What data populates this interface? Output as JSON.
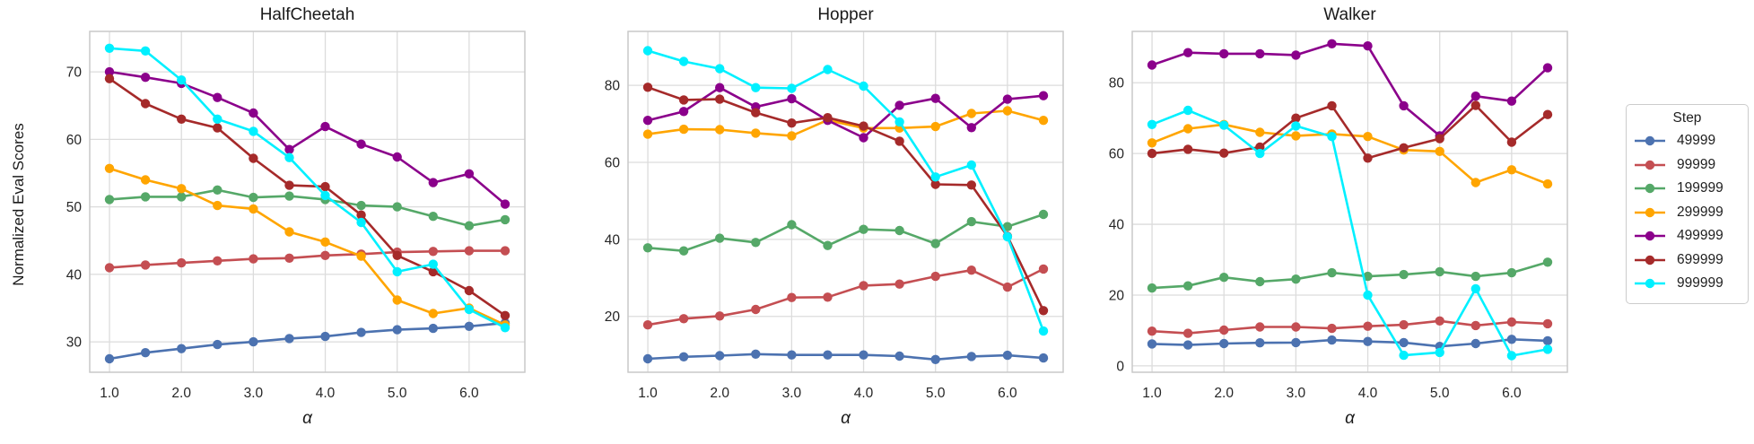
{
  "figure": {
    "ylabel": "Normalized Eval Scores",
    "xlabel": "α",
    "background": "#ffffff",
    "grid_color": "#dcdcdc",
    "spine_color": "#c9c9c9"
  },
  "legend": {
    "title": "Step",
    "position": "right",
    "entries": [
      {
        "label": "49999",
        "color": "#4C72B0"
      },
      {
        "label": "99999",
        "color": "#C44E52"
      },
      {
        "label": "199999",
        "color": "#55A868"
      },
      {
        "label": "299999",
        "color": "#FFA500"
      },
      {
        "label": "499999",
        "color": "#8B008B"
      },
      {
        "label": "699999",
        "color": "#A52A2A"
      },
      {
        "label": "999999",
        "color": "#00F0FF"
      }
    ]
  },
  "chart_data": [
    {
      "type": "line",
      "title": "HalfCheetah",
      "xlabel": "α",
      "ylabel": "Normalized Eval Scores",
      "grid": true,
      "x": [
        1.0,
        1.5,
        2.0,
        2.5,
        3.0,
        3.5,
        4.0,
        4.5,
        5.0,
        5.5,
        6.0,
        6.5
      ],
      "xlim": [
        0.725,
        6.775
      ],
      "ylim": [
        25.5,
        76.0
      ],
      "xticks": [
        1.0,
        2.0,
        3.0,
        4.0,
        5.0,
        6.0
      ],
      "xtick_labels": [
        "1.0",
        "2.0",
        "3.0",
        "4.0",
        "5.0",
        "6.0"
      ],
      "yticks": [
        30,
        40,
        50,
        60,
        70
      ],
      "ytick_labels": [
        "30",
        "40",
        "50",
        "60",
        "70"
      ],
      "series": [
        {
          "name": "49999",
          "color": "#4C72B0",
          "values": [
            27.5,
            28.4,
            29.0,
            29.6,
            30.0,
            30.5,
            30.8,
            31.4,
            31.8,
            32.0,
            32.3,
            32.8
          ]
        },
        {
          "name": "99999",
          "color": "#C44E52",
          "values": [
            41.0,
            41.4,
            41.7,
            42.0,
            42.3,
            42.4,
            42.8,
            43.0,
            43.3,
            43.4,
            43.5,
            43.5
          ]
        },
        {
          "name": "199999",
          "color": "#55A868",
          "values": [
            51.1,
            51.5,
            51.5,
            52.5,
            51.4,
            51.6,
            51.1,
            50.2,
            50.0,
            48.6,
            47.2,
            48.1
          ]
        },
        {
          "name": "299999",
          "color": "#FFA500",
          "values": [
            55.7,
            54.0,
            52.7,
            50.2,
            49.7,
            46.3,
            44.8,
            42.7,
            36.2,
            34.2,
            35.0,
            32.5
          ]
        },
        {
          "name": "499999",
          "color": "#8B008B",
          "values": [
            70.0,
            69.2,
            68.3,
            66.2,
            63.9,
            58.5,
            61.9,
            59.3,
            57.4,
            53.6,
            54.9,
            50.4
          ]
        },
        {
          "name": "699999",
          "color": "#A52A2A",
          "values": [
            69.0,
            65.3,
            63.0,
            61.7,
            57.2,
            53.2,
            53.0,
            48.8,
            42.8,
            40.4,
            37.6,
            33.9
          ]
        },
        {
          "name": "999999",
          "color": "#00F0FF",
          "values": [
            73.5,
            73.1,
            68.8,
            63.0,
            61.2,
            57.3,
            51.7,
            47.7,
            40.4,
            41.5,
            34.8,
            32.1
          ]
        }
      ]
    },
    {
      "type": "line",
      "title": "Hopper",
      "xlabel": "α",
      "ylabel": "Normalized Eval Scores",
      "grid": true,
      "x": [
        1.0,
        1.5,
        2.0,
        2.5,
        3.0,
        3.5,
        4.0,
        4.5,
        5.0,
        5.5,
        6.0,
        6.5
      ],
      "xlim": [
        0.725,
        6.775
      ],
      "ylim": [
        5.5,
        94.0
      ],
      "xticks": [
        1.0,
        2.0,
        3.0,
        4.0,
        5.0,
        6.0
      ],
      "xtick_labels": [
        "1.0",
        "2.0",
        "3.0",
        "4.0",
        "5.0",
        "6.0"
      ],
      "yticks": [
        20,
        40,
        60,
        80
      ],
      "ytick_labels": [
        "20",
        "40",
        "60",
        "80"
      ],
      "series": [
        {
          "name": "49999",
          "color": "#4C72B0",
          "values": [
            9.0,
            9.5,
            9.8,
            10.2,
            10.0,
            10.0,
            10.0,
            9.7,
            8.8,
            9.6,
            9.9,
            9.2
          ]
        },
        {
          "name": "99999",
          "color": "#C44E52",
          "values": [
            17.8,
            19.4,
            20.1,
            21.8,
            24.9,
            25.0,
            28.0,
            28.4,
            30.4,
            32.0,
            27.6,
            32.3
          ]
        },
        {
          "name": "199999",
          "color": "#55A868",
          "values": [
            37.8,
            37.0,
            40.3,
            39.2,
            43.8,
            38.4,
            42.6,
            42.3,
            38.9,
            44.6,
            43.3,
            46.5
          ]
        },
        {
          "name": "299999",
          "color": "#FFA500",
          "values": [
            67.3,
            68.6,
            68.5,
            67.6,
            66.9,
            71.0,
            68.9,
            68.9,
            69.3,
            72.7,
            73.4,
            70.9
          ]
        },
        {
          "name": "499999",
          "color": "#8B008B",
          "values": [
            70.9,
            73.2,
            79.4,
            74.4,
            76.5,
            70.9,
            66.4,
            74.8,
            76.6,
            69.0,
            76.4,
            77.3
          ]
        },
        {
          "name": "699999",
          "color": "#A52A2A",
          "values": [
            79.5,
            76.2,
            76.4,
            72.9,
            70.2,
            71.6,
            69.4,
            65.5,
            54.3,
            54.1,
            40.8,
            21.5
          ]
        },
        {
          "name": "999999",
          "color": "#00F0FF",
          "values": [
            89.0,
            86.2,
            84.3,
            79.4,
            79.2,
            84.1,
            79.8,
            70.5,
            56.2,
            59.3,
            40.7,
            16.2
          ]
        }
      ]
    },
    {
      "type": "line",
      "title": "Walker",
      "xlabel": "α",
      "ylabel": "Normalized Eval Scores",
      "grid": true,
      "x": [
        1.0,
        1.5,
        2.0,
        2.5,
        3.0,
        3.5,
        4.0,
        4.5,
        5.0,
        5.5,
        6.0,
        6.5
      ],
      "xlim": [
        0.725,
        6.775
      ],
      "ylim": [
        -1.8,
        94.5
      ],
      "xticks": [
        1.0,
        2.0,
        3.0,
        4.0,
        5.0,
        6.0
      ],
      "xtick_labels": [
        "1.0",
        "2.0",
        "3.0",
        "4.0",
        "5.0",
        "6.0"
      ],
      "yticks": [
        0,
        20,
        40,
        60,
        80
      ],
      "ytick_labels": [
        "0",
        "20",
        "40",
        "60",
        "80"
      ],
      "series": [
        {
          "name": "49999",
          "color": "#4C72B0",
          "values": [
            6.2,
            5.9,
            6.3,
            6.5,
            6.6,
            7.3,
            6.9,
            6.6,
            5.5,
            6.3,
            7.5,
            7.1
          ]
        },
        {
          "name": "99999",
          "color": "#C44E52",
          "values": [
            9.8,
            9.2,
            10.1,
            11.0,
            11.0,
            10.6,
            11.2,
            11.6,
            12.7,
            11.4,
            12.4,
            11.9
          ]
        },
        {
          "name": "199999",
          "color": "#55A868",
          "values": [
            22.0,
            22.6,
            25.0,
            23.8,
            24.5,
            26.3,
            25.3,
            25.8,
            26.6,
            25.3,
            26.3,
            29.3
          ]
        },
        {
          "name": "299999",
          "color": "#FFA500",
          "values": [
            63.0,
            67.0,
            68.2,
            66.0,
            65.0,
            65.5,
            64.8,
            61.0,
            60.6,
            51.8,
            55.4,
            51.4
          ]
        },
        {
          "name": "499999",
          "color": "#8B008B",
          "values": [
            85.0,
            88.5,
            88.2,
            88.2,
            87.8,
            91.0,
            90.4,
            73.5,
            65.0,
            76.2,
            74.8,
            84.2
          ]
        },
        {
          "name": "699999",
          "color": "#A52A2A",
          "values": [
            60.0,
            61.2,
            60.1,
            61.8,
            70.0,
            73.5,
            58.7,
            61.6,
            64.2,
            73.6,
            63.2,
            71.0
          ]
        },
        {
          "name": "999999",
          "color": "#00F0FF",
          "values": [
            68.2,
            72.2,
            68.0,
            60.0,
            67.8,
            64.8,
            20.0,
            3.0,
            3.8,
            21.8,
            2.9,
            4.7
          ]
        }
      ]
    }
  ]
}
